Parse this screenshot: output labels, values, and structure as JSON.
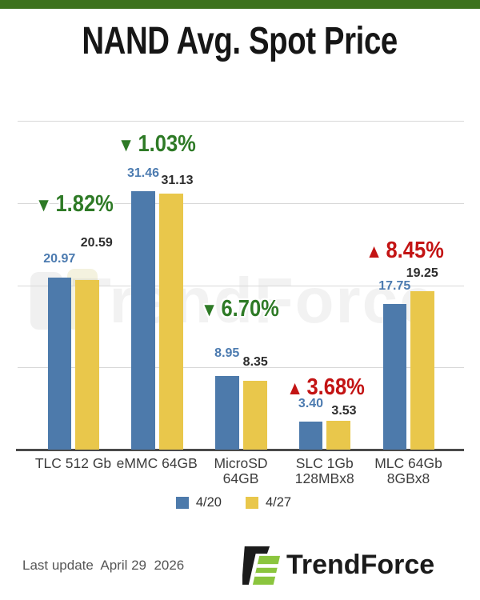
{
  "page": {
    "title": "NAND Avg. Spot Price",
    "footer": {
      "last_update": "Last update  April 29  2026"
    },
    "brand": {
      "name": "TrendForce"
    },
    "watermark": "TrendForce",
    "colors": {
      "top_bar": "#3d721d",
      "up": "#c31414",
      "down": "#2e7a26",
      "logo_green": "#8bc53e",
      "logo_black": "#1b1b1b"
    }
  },
  "chart_data": {
    "type": "bar",
    "title": "NAND Avg. Spot Price",
    "categories": [
      "TLC 512 Gb",
      "eMMC 64GB",
      "MicroSD 64GB",
      "SLC 1Gb 128MBx8",
      "MLC 64Gb 8GBx8"
    ],
    "category_lines": [
      [
        "TLC 512 Gb"
      ],
      [
        "eMMC 64GB"
      ],
      [
        "MicroSD",
        "64GB"
      ],
      [
        "SLC 1Gb",
        "128MBx8"
      ],
      [
        "MLC 64Gb",
        "8GBx8"
      ]
    ],
    "series": [
      {
        "name": "4/20",
        "color": "#4d7aab",
        "label_color": "#4c7bb0",
        "values": [
          20.97,
          31.46,
          8.95,
          3.4,
          17.75
        ]
      },
      {
        "name": "4/27",
        "color": "#e9c74b",
        "label_color": "#2d2d2d",
        "values": [
          20.59,
          31.13,
          8.35,
          3.53,
          19.25
        ]
      }
    ],
    "change_labels": [
      {
        "text": "1.82%",
        "direction": "down"
      },
      {
        "text": "1.03%",
        "direction": "down"
      },
      {
        "text": "6.70%",
        "direction": "down"
      },
      {
        "text": "3.68%",
        "direction": "up"
      },
      {
        "text": "8.45%",
        "direction": "up"
      }
    ],
    "ylim": [
      0,
      40
    ],
    "grid_step": 10,
    "grid": true,
    "legend_position": "bottom"
  }
}
